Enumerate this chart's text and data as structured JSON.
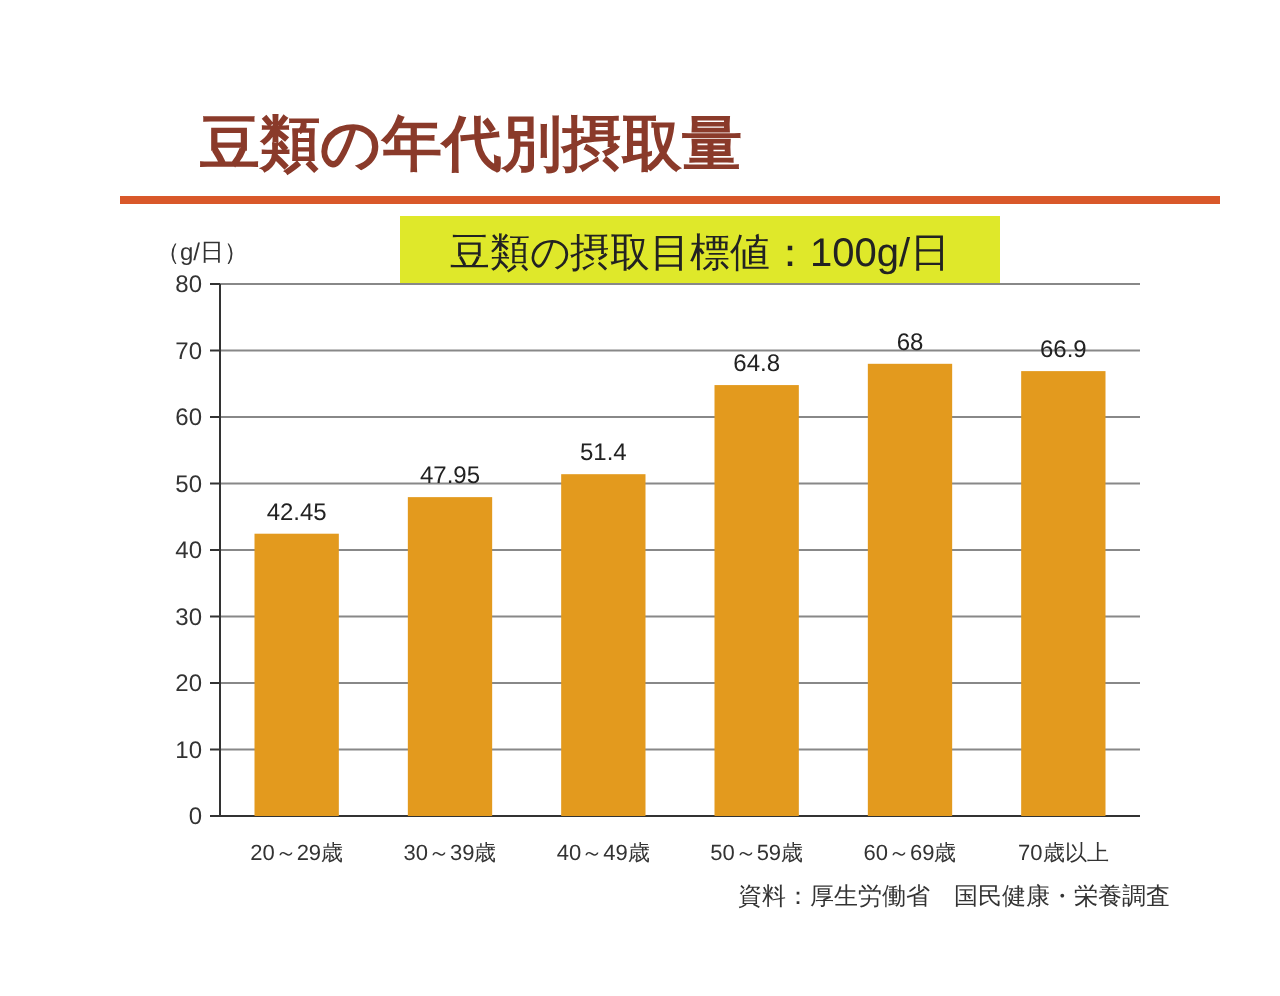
{
  "chart_data": {
    "type": "bar",
    "title": "豆類の年代別摂取量",
    "subtitle": "豆類の摂取目標値：100g/日",
    "ylabel": "（g/日）",
    "categories": [
      "20～29歳",
      "30～39歳",
      "40～49歳",
      "50～59歳",
      "60～69歳",
      "70歳以上"
    ],
    "values": [
      42.45,
      47.95,
      51.4,
      64.8,
      68,
      66.9
    ],
    "color": "#e39a1e",
    "ylim": [
      0,
      80
    ],
    "yticks": [
      0,
      10,
      20,
      30,
      40,
      50,
      60,
      70,
      80
    ],
    "grid": "y",
    "data_labels": true,
    "annotations": [
      "資料：厚生労働省　国民健康・栄養調査"
    ]
  }
}
